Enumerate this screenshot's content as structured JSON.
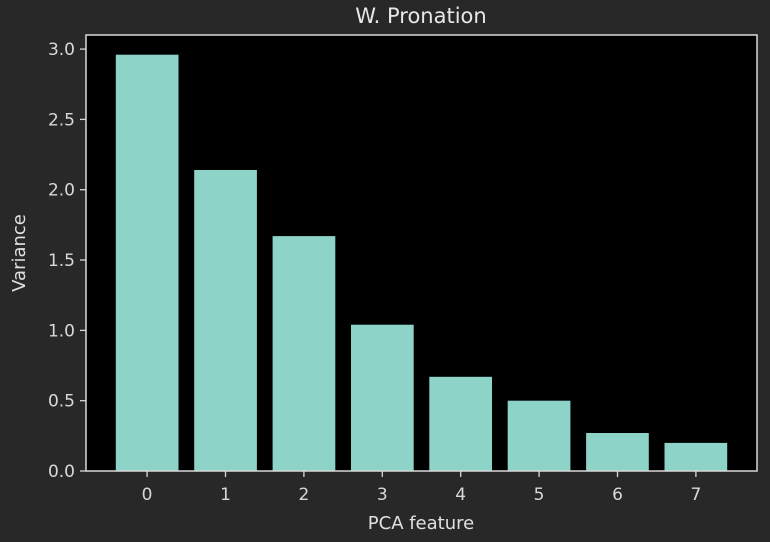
{
  "chart_data": {
    "type": "bar",
    "title": "W. Pronation",
    "xlabel": "PCA feature",
    "ylabel": "Variance",
    "categories": [
      "0",
      "1",
      "2",
      "3",
      "4",
      "5",
      "6",
      "7"
    ],
    "values": [
      2.96,
      2.14,
      1.67,
      1.04,
      0.67,
      0.5,
      0.27,
      0.2
    ],
    "ylim": [
      0,
      3.1
    ],
    "yticks": [
      "0.0",
      "0.5",
      "1.0",
      "1.5",
      "2.0",
      "2.5",
      "3.0"
    ],
    "grid": false,
    "colors": {
      "bar": "#8dd3c7",
      "plot_background": "#000000",
      "figure_background": "#282828",
      "axis": "#d9d9d9",
      "text": "#e0e0e0"
    }
  }
}
